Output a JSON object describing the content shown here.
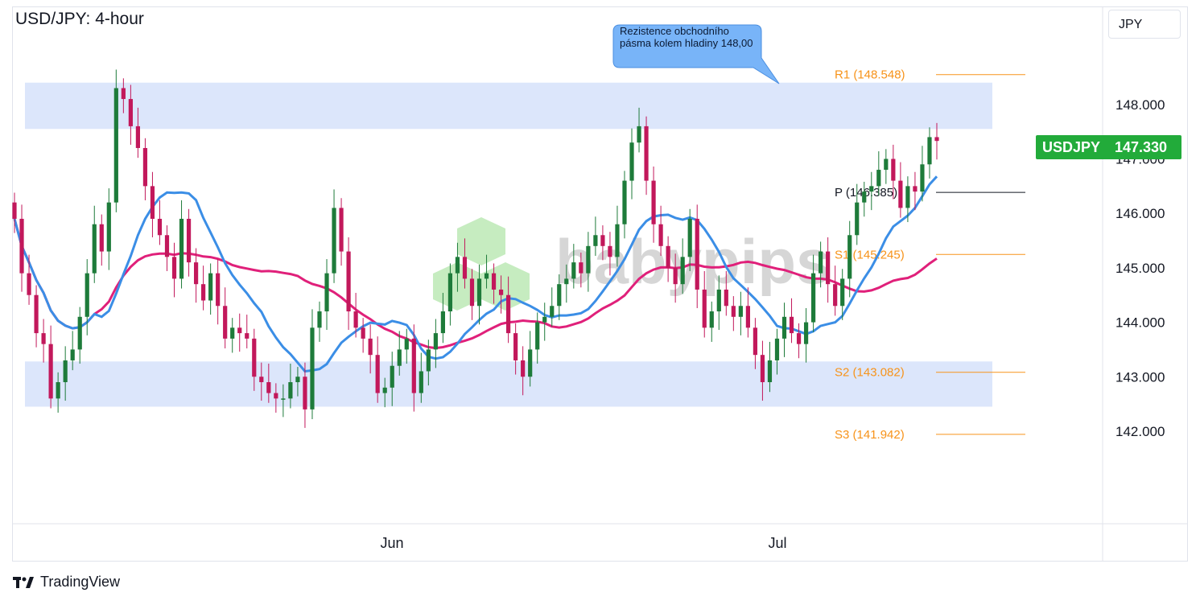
{
  "header": {
    "title": "USD/JPY: 4-hour",
    "currency": "JPY"
  },
  "price_tag": {
    "symbol": "USDJPY",
    "value": "147.330",
    "color": "#22ab3a"
  },
  "annotation": {
    "text": "Rezistence obchodního pásma kolem hladiny 148,00",
    "color": "#78b4f8"
  },
  "watermark": {
    "text": "babypips"
  },
  "footer": {
    "brand": "TradingView"
  },
  "colors": {
    "bull": "#1e7b3a",
    "bear": "#c2185b",
    "ma_fast": "#3b8ee6",
    "ma_slow": "#e0207a",
    "pivot_orange": "#f7931a",
    "zone": "#dce6fb"
  },
  "chart_data": {
    "type": "candlestick",
    "title": "USD/JPY: 4-hour",
    "ylim": [
      140.3,
      149.8
    ],
    "y_ticks": [
      "142.000",
      "143.000",
      "144.000",
      "145.000",
      "146.000",
      "147.000",
      "148.000"
    ],
    "x_ticks": [
      "Jun",
      "Jul"
    ],
    "zones": [
      {
        "name": "resistance",
        "low": 147.55,
        "high": 148.4
      },
      {
        "name": "support",
        "low": 142.45,
        "high": 143.28
      }
    ],
    "pivots": [
      {
        "label": "R1",
        "value": 148.548,
        "color": "#f7931a"
      },
      {
        "label": "P",
        "value": 146.385,
        "color": "#131722"
      },
      {
        "label": "S1",
        "value": 145.245,
        "color": "#f7931a"
      },
      {
        "label": "S2",
        "value": 143.082,
        "color": "#f7931a"
      },
      {
        "label": "S3",
        "value": 141.942,
        "color": "#f7931a"
      }
    ],
    "last_price": 147.33,
    "closes": [
      145.9,
      144.9,
      144.5,
      143.8,
      143.6,
      142.6,
      142.9,
      143.3,
      143.5,
      144.1,
      144.9,
      145.8,
      145.3,
      146.2,
      148.3,
      148.1,
      147.6,
      147.2,
      146.5,
      145.9,
      145.6,
      145.2,
      144.8,
      145.9,
      145.1,
      144.7,
      144.4,
      144.9,
      144.3,
      143.7,
      143.9,
      143.8,
      143.7,
      143.0,
      142.9,
      142.7,
      142.6,
      142.6,
      142.9,
      143.0,
      142.4,
      143.9,
      144.2,
      144.9,
      146.1,
      145.3,
      144.2,
      143.9,
      143.7,
      143.4,
      142.7,
      142.8,
      143.2,
      143.5,
      143.7,
      142.7,
      143.1,
      143.5,
      143.8,
      144.2,
      144.9,
      145.2,
      144.8,
      144.3,
      144.8,
      144.9,
      144.6,
      144.5,
      143.8,
      143.3,
      143.0,
      143.5,
      144.0,
      144.1,
      144.3,
      144.7,
      144.8,
      145.1,
      144.9,
      145.4,
      145.6,
      145.4,
      145.2,
      145.8,
      146.6,
      147.3,
      147.6,
      146.6,
      145.8,
      145.4,
      145.0,
      144.7,
      145.2,
      145.9,
      144.6,
      143.9,
      144.2,
      144.6,
      144.3,
      144.1,
      144.3,
      143.9,
      143.4,
      142.9,
      143.3,
      143.7,
      144.1,
      143.8,
      143.6,
      144.0,
      144.9,
      145.3,
      144.7,
      144.3,
      144.8,
      145.6,
      146.2,
      146.4,
      146.5,
      146.8,
      147.0,
      146.6,
      146.1,
      146.5,
      146.4,
      146.9,
      147.4,
      147.33
    ]
  }
}
